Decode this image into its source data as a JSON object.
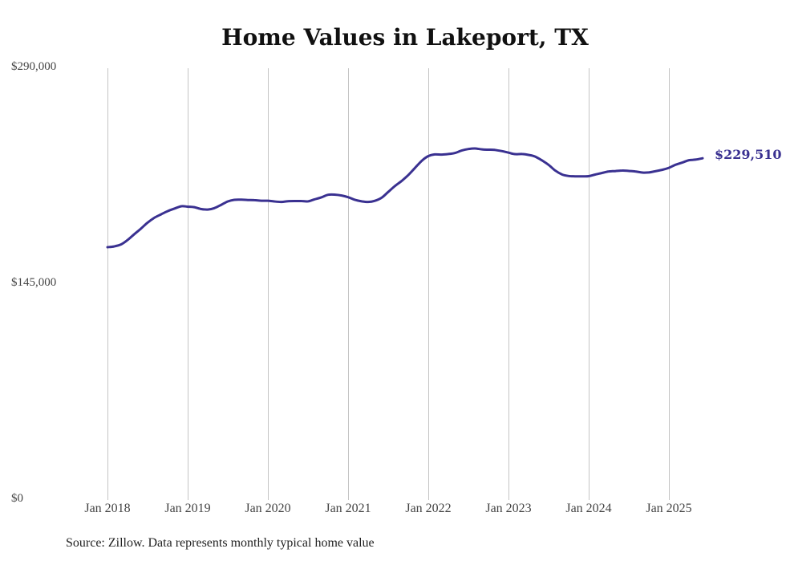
{
  "chart_data": {
    "type": "line",
    "title": "Home Values in Lakeport, TX",
    "xlabel": "",
    "ylabel": "",
    "ylim": [
      0,
      290000
    ],
    "y_ticks": [
      {
        "value": 0,
        "label": "$0"
      },
      {
        "value": 145000,
        "label": "$145,000"
      },
      {
        "value": 290000,
        "label": "$290,000"
      }
    ],
    "x_ticks": [
      {
        "value": 2018.0,
        "label": "Jan 2018"
      },
      {
        "value": 2019.0,
        "label": "Jan 2019"
      },
      {
        "value": 2020.0,
        "label": "Jan 2020"
      },
      {
        "value": 2021.0,
        "label": "Jan 2021"
      },
      {
        "value": 2022.0,
        "label": "Jan 2022"
      },
      {
        "value": 2023.0,
        "label": "Jan 2023"
      },
      {
        "value": 2024.0,
        "label": "Jan 2024"
      },
      {
        "value": 2025.0,
        "label": "Jan 2025"
      }
    ],
    "xlim": [
      2018.0,
      2025.5
    ],
    "grid": "vertical",
    "series": [
      {
        "name": "Typical home value",
        "color": "#3a3191",
        "end_label": "$229,510",
        "points": [
          [
            2018.0,
            169800
          ],
          [
            2018.08,
            170300
          ],
          [
            2018.17,
            171700
          ],
          [
            2018.25,
            174600
          ],
          [
            2018.33,
            178300
          ],
          [
            2018.42,
            182400
          ],
          [
            2018.5,
            186300
          ],
          [
            2018.58,
            189400
          ],
          [
            2018.67,
            191900
          ],
          [
            2018.75,
            194000
          ],
          [
            2018.83,
            195600
          ],
          [
            2018.92,
            197300
          ],
          [
            2019.0,
            197000
          ],
          [
            2019.08,
            196700
          ],
          [
            2019.17,
            195400
          ],
          [
            2019.25,
            195100
          ],
          [
            2019.33,
            196000
          ],
          [
            2019.42,
            198300
          ],
          [
            2019.5,
            200500
          ],
          [
            2019.58,
            201600
          ],
          [
            2019.67,
            201700
          ],
          [
            2019.75,
            201500
          ],
          [
            2019.83,
            201400
          ],
          [
            2019.92,
            201000
          ],
          [
            2020.0,
            201000
          ],
          [
            2020.08,
            200500
          ],
          [
            2020.17,
            200200
          ],
          [
            2020.25,
            200700
          ],
          [
            2020.33,
            200800
          ],
          [
            2020.42,
            200800
          ],
          [
            2020.5,
            200600
          ],
          [
            2020.58,
            201900
          ],
          [
            2020.67,
            203300
          ],
          [
            2020.75,
            205000
          ],
          [
            2020.83,
            205100
          ],
          [
            2020.92,
            204500
          ],
          [
            2021.0,
            203400
          ],
          [
            2021.08,
            201700
          ],
          [
            2021.17,
            200600
          ],
          [
            2021.25,
            200200
          ],
          [
            2021.33,
            200900
          ],
          [
            2021.42,
            203100
          ],
          [
            2021.5,
            206900
          ],
          [
            2021.58,
            210700
          ],
          [
            2021.67,
            214400
          ],
          [
            2021.75,
            218200
          ],
          [
            2021.83,
            222800
          ],
          [
            2021.92,
            227900
          ],
          [
            2022.0,
            231000
          ],
          [
            2022.08,
            232100
          ],
          [
            2022.17,
            232000
          ],
          [
            2022.25,
            232400
          ],
          [
            2022.33,
            233000
          ],
          [
            2022.42,
            234800
          ],
          [
            2022.5,
            235700
          ],
          [
            2022.58,
            236100
          ],
          [
            2022.67,
            235500
          ],
          [
            2022.75,
            235300
          ],
          [
            2022.83,
            235100
          ],
          [
            2022.92,
            234300
          ],
          [
            2023.0,
            233300
          ],
          [
            2023.08,
            232300
          ],
          [
            2023.17,
            232400
          ],
          [
            2023.25,
            231800
          ],
          [
            2023.33,
            230700
          ],
          [
            2023.42,
            228000
          ],
          [
            2023.5,
            225100
          ],
          [
            2023.58,
            221400
          ],
          [
            2023.67,
            218600
          ],
          [
            2023.75,
            217600
          ],
          [
            2023.83,
            217400
          ],
          [
            2023.92,
            217400
          ],
          [
            2024.0,
            217500
          ],
          [
            2024.08,
            218600
          ],
          [
            2024.17,
            219700
          ],
          [
            2024.25,
            220700
          ],
          [
            2024.33,
            220900
          ],
          [
            2024.42,
            221300
          ],
          [
            2024.5,
            221000
          ],
          [
            2024.58,
            220700
          ],
          [
            2024.67,
            219900
          ],
          [
            2024.75,
            220000
          ],
          [
            2024.83,
            220800
          ],
          [
            2024.92,
            221800
          ],
          [
            2025.0,
            223100
          ],
          [
            2025.08,
            225100
          ],
          [
            2025.17,
            226700
          ],
          [
            2025.25,
            228200
          ],
          [
            2025.33,
            228600
          ],
          [
            2025.42,
            229510
          ]
        ]
      }
    ],
    "source": "Source: Zillow. Data represents monthly typical home value"
  }
}
